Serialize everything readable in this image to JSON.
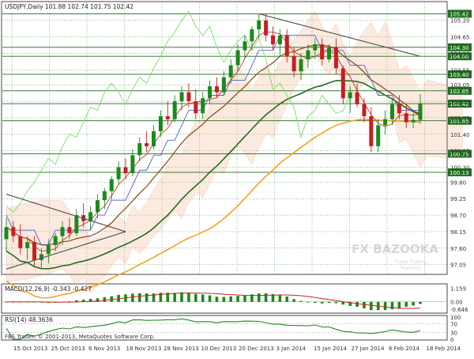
{
  "header": {
    "symbol_line": "USDJPY,Daily  101.88 102.74 101.75 102.42"
  },
  "watermark": {
    "brand": "FX BAZOOKA",
    "tagline_1": "Forex Trading",
    "tagline_2": "Platform",
    "style_color": "#bdbdbd"
  },
  "footer": {
    "copyright": "FBS Trader, © 2001-2013, MetaQuotes Software Corp."
  },
  "colors": {
    "grid": "#2e7d2e",
    "level_line": "#1f6b1f",
    "candle": "#1a8a1a",
    "candle_down": "#c81e1e",
    "trend_line": "#555555",
    "sma_fast": "#c03a2b",
    "sma_mid": "#8b4513",
    "sma_slow": "#1e6e1e",
    "sma_long": "#f2a31c",
    "kijun": "#5a5acb",
    "chikou": "#77dd66",
    "cloud": "#f0a070",
    "macd_hist": "#1a8a1a",
    "macd_signal": "#cc2222",
    "rsi_line": "#1e8a1e"
  },
  "chart_data": [
    {
      "type": "candlestick",
      "title": "USDJPY,Daily",
      "ohlc_last": {
        "open": 101.88,
        "high": 102.74,
        "low": 101.75,
        "close": 102.42
      },
      "ylim": [
        96.75,
        105.8
      ],
      "y_tick_labels": [
        "105.20",
        "104.65",
        "104.10",
        "103.55",
        "103.05",
        "102.50",
        "101.95",
        "101.40",
        "100.85",
        "100.30",
        "99.80",
        "99.25",
        "98.70",
        "98.15",
        "97.60",
        "97.05"
      ],
      "highlighted_levels": [
        "105.42",
        "104.30",
        "104.00",
        "103.40",
        "102.85",
        "102.42",
        "101.85",
        "100.75",
        "100.13"
      ],
      "x_tick_labels": [
        "15 Oct 2013",
        "25 Oct 2013",
        "6 Nov 2013",
        "18 Nov 2013",
        "28 Nov 2013",
        "10 Dec 2013",
        "20 Dec 2013",
        "3 Jan 2014",
        "15 Jan 2014",
        "27 Jan 2014",
        "6 Feb 2014",
        "18 Feb 2014"
      ],
      "candles": [
        [
          97.9,
          98.6,
          97.5,
          98.3
        ],
        [
          98.3,
          98.5,
          97.8,
          98.0
        ],
        [
          98.0,
          98.4,
          97.4,
          97.6
        ],
        [
          97.6,
          98.0,
          97.2,
          97.8
        ],
        [
          97.8,
          98.0,
          97.0,
          97.2
        ],
        [
          97.2,
          97.6,
          96.9,
          97.4
        ],
        [
          97.4,
          97.9,
          97.1,
          97.7
        ],
        [
          97.7,
          98.1,
          97.5,
          98.0
        ],
        [
          98.0,
          98.5,
          97.7,
          98.3
        ],
        [
          98.3,
          98.6,
          97.9,
          98.1
        ],
        [
          98.1,
          98.9,
          98.0,
          98.7
        ],
        [
          98.7,
          99.1,
          98.3,
          98.5
        ],
        [
          98.5,
          99.0,
          98.2,
          98.8
        ],
        [
          98.8,
          99.4,
          98.6,
          99.2
        ],
        [
          99.2,
          99.6,
          98.9,
          99.5
        ],
        [
          99.5,
          100.0,
          99.2,
          99.9
        ],
        [
          99.9,
          100.5,
          99.7,
          100.3
        ],
        [
          100.3,
          100.6,
          99.9,
          100.1
        ],
        [
          100.1,
          100.9,
          100.0,
          100.7
        ],
        [
          100.7,
          101.3,
          100.5,
          101.1
        ],
        [
          101.1,
          101.5,
          100.8,
          101.0
        ],
        [
          101.0,
          101.7,
          100.9,
          101.5
        ],
        [
          101.5,
          102.2,
          101.3,
          102.0
        ],
        [
          102.0,
          102.5,
          101.7,
          101.9
        ],
        [
          101.9,
          102.7,
          101.8,
          102.5
        ],
        [
          102.5,
          103.0,
          102.2,
          102.8
        ],
        [
          102.8,
          103.1,
          102.3,
          102.5
        ],
        [
          102.5,
          102.9,
          101.9,
          102.1
        ],
        [
          102.1,
          102.8,
          101.9,
          102.6
        ],
        [
          102.6,
          103.2,
          102.4,
          103.0
        ],
        [
          103.0,
          103.3,
          102.6,
          102.8
        ],
        [
          102.8,
          103.5,
          102.7,
          103.3
        ],
        [
          103.3,
          103.9,
          103.1,
          103.7
        ],
        [
          103.7,
          104.4,
          103.5,
          104.2
        ],
        [
          104.2,
          104.7,
          103.9,
          104.5
        ],
        [
          104.5,
          105.0,
          104.2,
          104.9
        ],
        [
          104.9,
          105.4,
          104.6,
          105.2
        ],
        [
          105.2,
          105.42,
          104.5,
          104.7
        ],
        [
          104.7,
          105.0,
          104.2,
          104.4
        ],
        [
          104.4,
          104.9,
          104.0,
          104.7
        ],
        [
          104.7,
          104.9,
          103.8,
          104.0
        ],
        [
          104.0,
          104.3,
          103.3,
          103.5
        ],
        [
          103.5,
          104.1,
          103.2,
          103.9
        ],
        [
          103.9,
          104.4,
          103.6,
          104.2
        ],
        [
          104.2,
          104.6,
          103.9,
          104.4
        ],
        [
          104.4,
          104.6,
          103.7,
          103.9
        ],
        [
          103.9,
          104.4,
          103.8,
          104.3
        ],
        [
          104.3,
          104.6,
          103.4,
          103.6
        ],
        [
          103.6,
          103.7,
          102.4,
          102.6
        ],
        [
          102.6,
          103.0,
          102.1,
          102.8
        ],
        [
          102.8,
          103.1,
          102.3,
          102.4
        ],
        [
          102.4,
          102.6,
          101.8,
          102.0
        ],
        [
          102.0,
          102.3,
          100.8,
          101.0
        ],
        [
          101.0,
          101.9,
          100.8,
          101.7
        ],
        [
          101.7,
          102.2,
          101.4,
          101.9
        ],
        [
          101.9,
          102.6,
          101.7,
          102.4
        ],
        [
          102.4,
          102.7,
          101.9,
          102.1
        ],
        [
          102.1,
          102.4,
          101.6,
          101.8
        ],
        [
          101.8,
          102.1,
          101.6,
          101.88
        ],
        [
          101.88,
          102.74,
          101.75,
          102.42
        ]
      ]
    },
    {
      "type": "bar",
      "title": "MACD(12,26,9) -0.343 -0.427",
      "y_tick_labels": [
        "1.159",
        "0.00",
        "-0.646"
      ],
      "ylim": [
        -0.9,
        1.4
      ]
    },
    {
      "type": "line",
      "title": "RSI(14) 48.3636",
      "y_tick_labels": [
        "100",
        "70",
        "30",
        "0"
      ],
      "ylim": [
        0,
        100
      ]
    }
  ]
}
